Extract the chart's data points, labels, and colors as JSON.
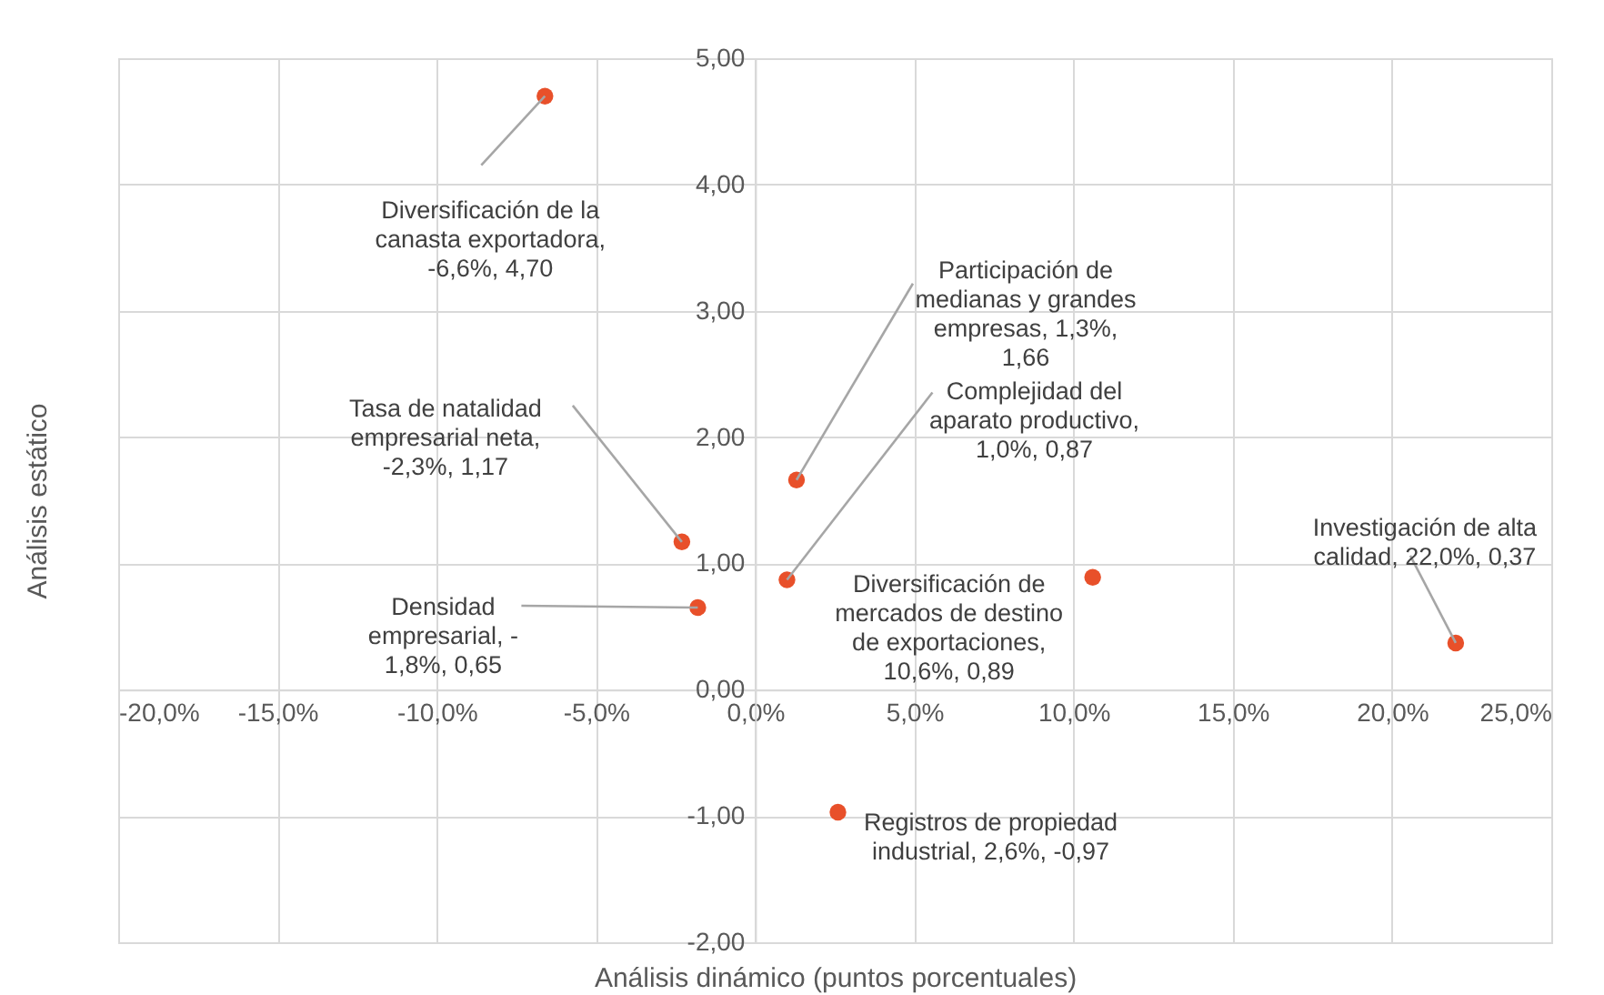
{
  "chart_data": {
    "type": "scatter",
    "xlabel": "Análisis dinámico (puntos porcentuales)",
    "ylabel": "Análisis estático",
    "x": [
      -6.6,
      -2.3,
      -1.8,
      1.3,
      1.0,
      10.6,
      22.0,
      2.6
    ],
    "series": [
      {
        "color": "#e8502a",
        "values": [
          4.7,
          1.17,
          0.65,
          1.66,
          0.87,
          0.89,
          0.37,
          -0.97
        ]
      }
    ],
    "xlim": [
      -20,
      25
    ],
    "ylim": [
      -2,
      5
    ],
    "xticks": [
      {
        "value": -20,
        "label": "-20,0%"
      },
      {
        "value": -15,
        "label": "-15,0%"
      },
      {
        "value": -10,
        "label": "-10,0%"
      },
      {
        "value": -5,
        "label": "-5,0%"
      },
      {
        "value": 0,
        "label": "0,0%"
      },
      {
        "value": 5,
        "label": "5,0%"
      },
      {
        "value": 10,
        "label": "10,0%"
      },
      {
        "value": 15,
        "label": "15,0%"
      },
      {
        "value": 20,
        "label": "20,0%"
      },
      {
        "value": 25,
        "label": "25,0%"
      }
    ],
    "yticks": [
      {
        "value": -2,
        "label": "-2,00"
      },
      {
        "value": -1,
        "label": "-1,00"
      },
      {
        "value": 0,
        "label": "0,00"
      },
      {
        "value": 1,
        "label": "1,00"
      },
      {
        "value": 2,
        "label": "2,00"
      },
      {
        "value": 3,
        "label": "3,00"
      },
      {
        "value": 4,
        "label": "4,00"
      },
      {
        "value": 5,
        "label": "5,00"
      }
    ],
    "grid": true,
    "marker": "circle",
    "annotations": [
      {
        "text": "Diversificación de la canasta exportadora, -6,6%, 4,70",
        "x": -6.6,
        "y": 4.7
      },
      {
        "text": "Tasa de natalidad empresarial neta, -2,3%, 1,17",
        "x": -2.3,
        "y": 1.17
      },
      {
        "text": "Densidad empresarial, - 1,8%, 0,65",
        "x": -1.8,
        "y": 0.65
      },
      {
        "text": "Participación de medianas y grandes empresas, 1,3%, 1,66",
        "x": 1.3,
        "y": 1.66
      },
      {
        "text": "Complejidad del aparato productivo, 1,0%, 0,87",
        "x": 1.0,
        "y": 0.87
      },
      {
        "text": "Diversificación de mercados de destino de exportaciones, 10,6%, 0,89",
        "x": 10.6,
        "y": 0.89
      },
      {
        "text": "Investigación de alta calidad, 22,0%, 0,37",
        "x": 22.0,
        "y": 0.37
      },
      {
        "text": "Registros de propiedad industrial, 2,6%, -0,97",
        "x": 2.6,
        "y": -0.97
      }
    ]
  }
}
